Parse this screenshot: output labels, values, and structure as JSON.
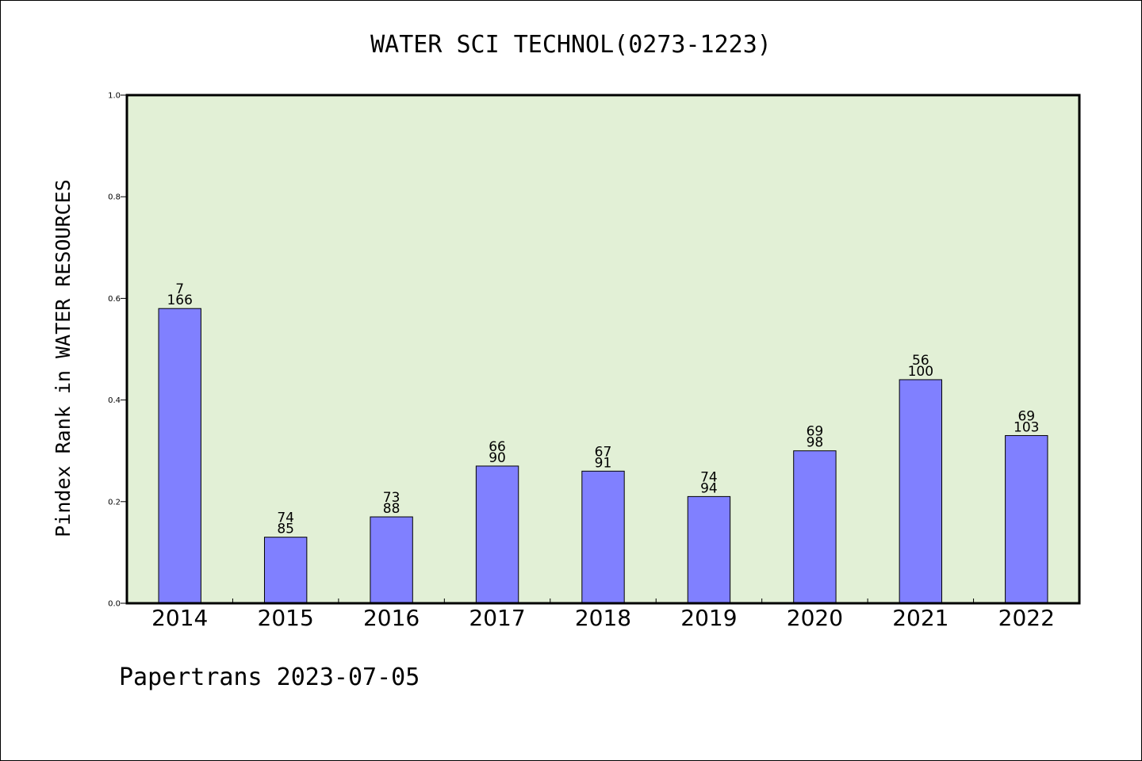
{
  "chart_data": {
    "type": "bar",
    "title": "WATER SCI TECHNOL(0273-1223)",
    "xlabel": "",
    "ylabel": "Pindex Rank in WATER RESOURCES",
    "ylim": [
      0,
      1.0
    ],
    "yticks": [
      "0.0",
      "0.2",
      "0.4",
      "0.6",
      "0.8",
      "1.0"
    ],
    "categories": [
      "2014",
      "2015",
      "2016",
      "2017",
      "2018",
      "2019",
      "2020",
      "2021",
      "2022"
    ],
    "values": [
      0.58,
      0.13,
      0.17,
      0.27,
      0.26,
      0.21,
      0.3,
      0.44,
      0.33
    ],
    "labels_top": [
      "7",
      "74",
      "73",
      "66",
      "67",
      "74",
      "69",
      "56",
      "69"
    ],
    "labels_bottom": [
      "166",
      "85",
      "88",
      "90",
      "91",
      "94",
      "98",
      "100",
      "103"
    ],
    "grid": false,
    "legend": "none",
    "colors": {
      "plot_background": "#e2f0d6",
      "bar_fill": "#8080ff",
      "bar_stroke": "#000000"
    }
  },
  "footer": {
    "text": "Papertrans 2023-07-05"
  }
}
